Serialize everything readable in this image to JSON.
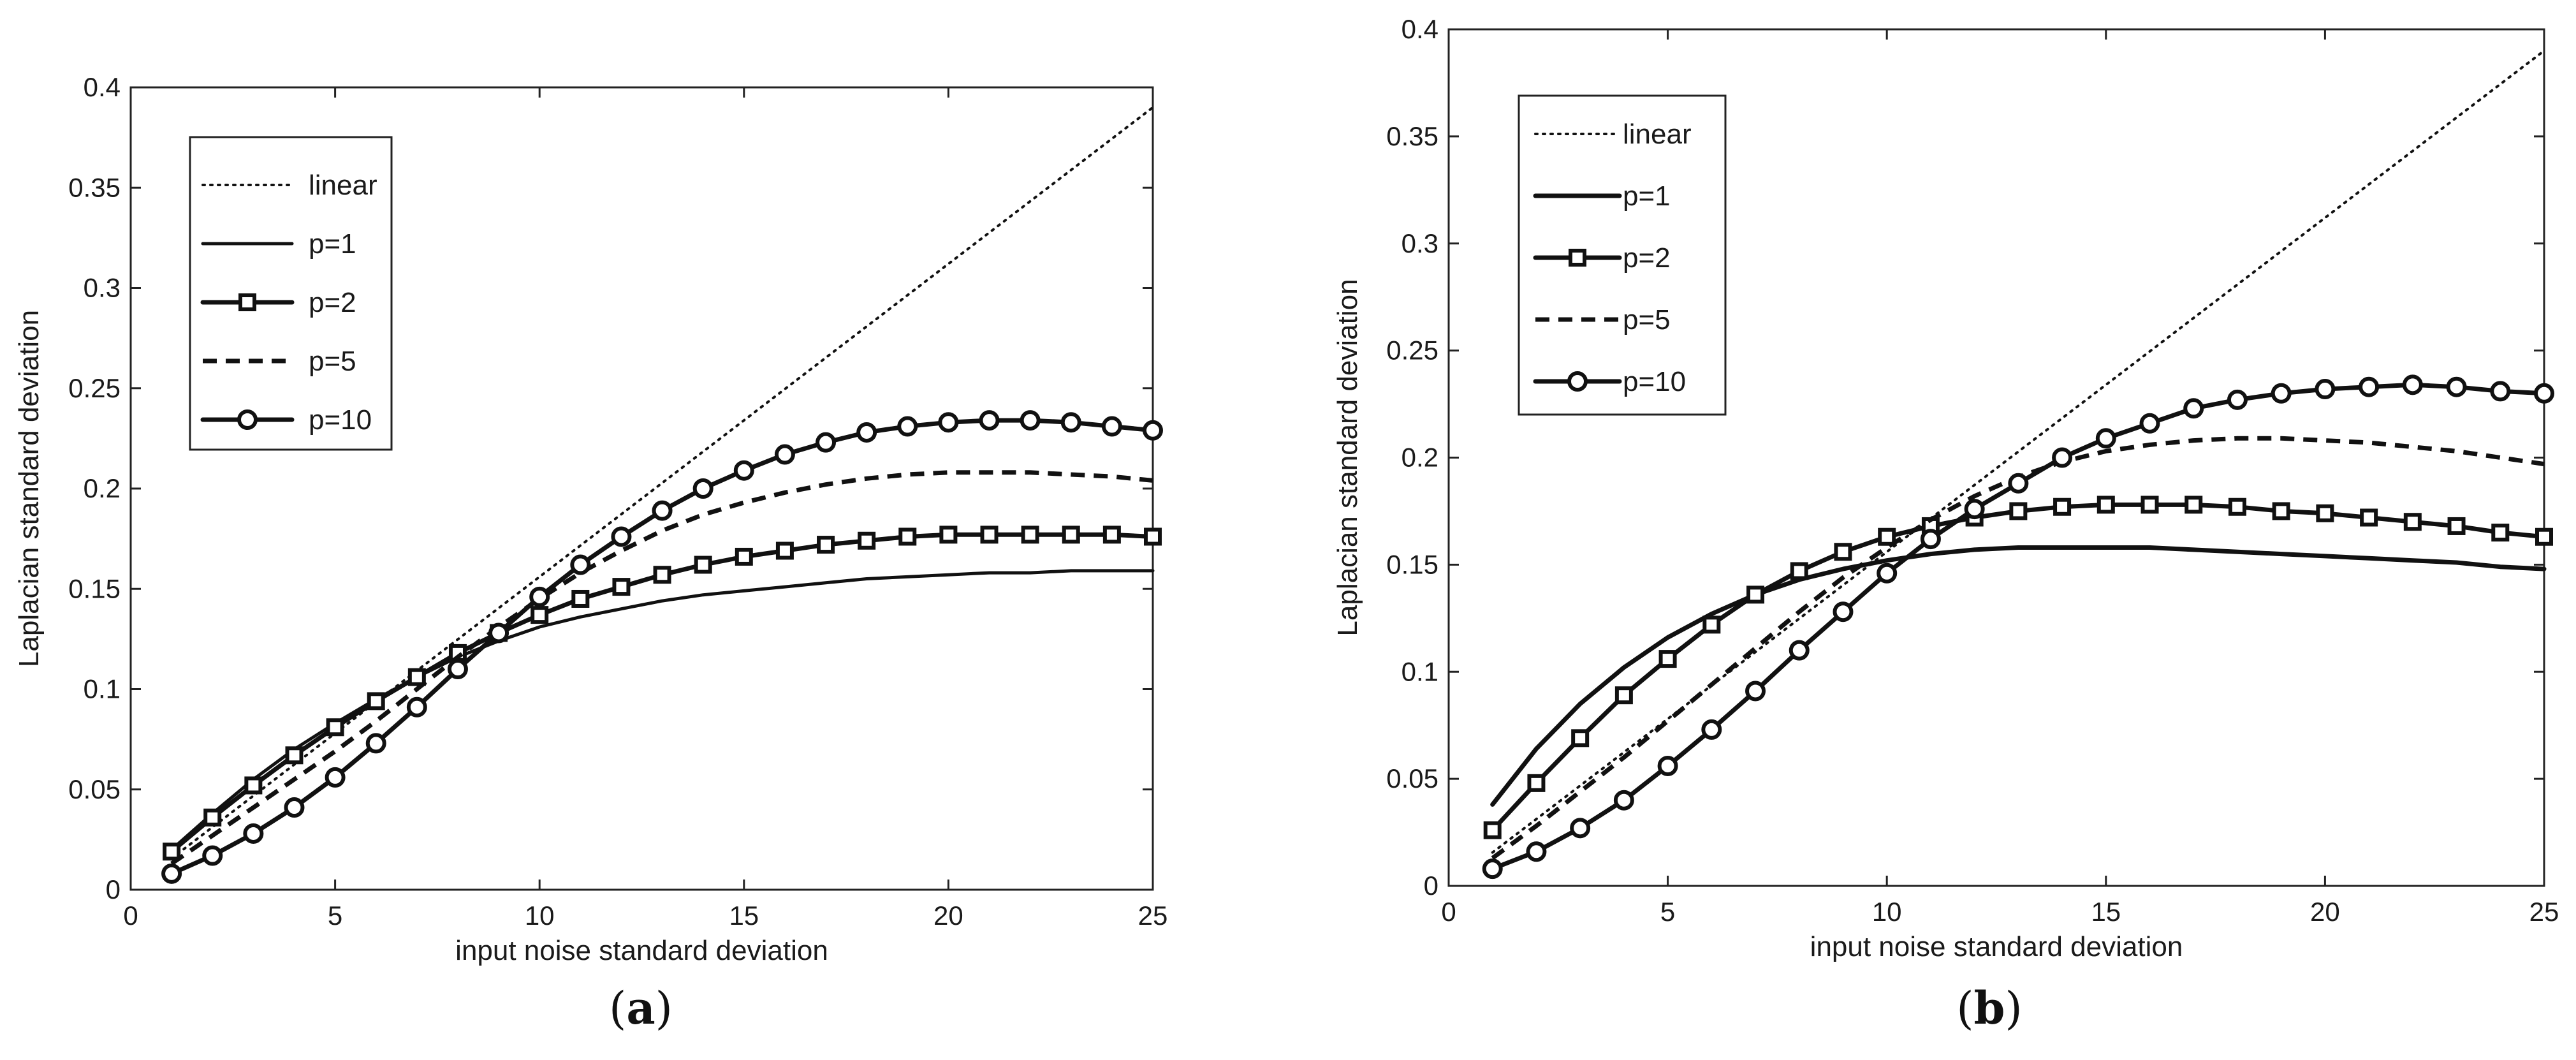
{
  "chart_data": [
    {
      "type": "line",
      "panel_label": "a",
      "xlabel": "input noise standard deviation",
      "ylabel": "Laplacian standard deviation",
      "xlim": [
        0,
        25
      ],
      "ylim": [
        0,
        0.4
      ],
      "xticks": [
        "0",
        "5",
        "10",
        "15",
        "20",
        "25"
      ],
      "yticks": [
        "0",
        "0.05",
        "0.1",
        "0.15",
        "0.2",
        "0.25",
        "0.3",
        "0.35",
        "0.4"
      ],
      "legend_position": "top-left",
      "x": [
        1,
        2,
        3,
        4,
        5,
        6,
        7,
        8,
        9,
        10,
        11,
        12,
        13,
        14,
        15,
        16,
        17,
        18,
        19,
        20,
        21,
        22,
        23,
        24,
        25
      ],
      "series": [
        {
          "name": "linear",
          "style": "dotted",
          "marker": "none",
          "values": [
            0.0156,
            0.0312,
            0.0468,
            0.0624,
            0.078,
            0.0936,
            0.1092,
            0.1248,
            0.1404,
            0.156,
            0.1716,
            0.1872,
            0.2028,
            0.2184,
            0.234,
            0.2496,
            0.2652,
            0.2808,
            0.2964,
            0.312,
            0.3276,
            0.3432,
            0.3588,
            0.3744,
            0.39
          ]
        },
        {
          "name": "p=1",
          "style": "solid-thin",
          "marker": "none",
          "values": [
            0.02,
            0.038,
            0.055,
            0.07,
            0.083,
            0.095,
            0.106,
            0.116,
            0.124,
            0.131,
            0.136,
            0.14,
            0.144,
            0.147,
            0.149,
            0.151,
            0.153,
            0.155,
            0.156,
            0.157,
            0.158,
            0.158,
            0.159,
            0.159,
            0.159
          ]
        },
        {
          "name": "p=2",
          "style": "solid",
          "marker": "square",
          "values": [
            0.019,
            0.036,
            0.052,
            0.067,
            0.081,
            0.094,
            0.106,
            0.118,
            0.128,
            0.137,
            0.145,
            0.151,
            0.157,
            0.162,
            0.166,
            0.169,
            0.172,
            0.174,
            0.176,
            0.177,
            0.177,
            0.177,
            0.177,
            0.177,
            0.176
          ]
        },
        {
          "name": "p=5",
          "style": "dashed",
          "marker": "none",
          "values": [
            0.013,
            0.027,
            0.041,
            0.055,
            0.069,
            0.084,
            0.1,
            0.116,
            0.131,
            0.145,
            0.158,
            0.169,
            0.179,
            0.187,
            0.193,
            0.198,
            0.202,
            0.205,
            0.207,
            0.208,
            0.208,
            0.208,
            0.207,
            0.206,
            0.204
          ]
        },
        {
          "name": "p=10",
          "style": "solid",
          "marker": "circle",
          "values": [
            0.008,
            0.017,
            0.028,
            0.041,
            0.056,
            0.073,
            0.091,
            0.11,
            0.128,
            0.146,
            0.162,
            0.176,
            0.189,
            0.2,
            0.209,
            0.217,
            0.223,
            0.228,
            0.231,
            0.233,
            0.234,
            0.234,
            0.233,
            0.231,
            0.229
          ]
        }
      ]
    },
    {
      "type": "line",
      "panel_label": "b",
      "xlabel": "input noise standard deviation",
      "ylabel": "Laplacian standard deviation",
      "xlim": [
        0,
        25
      ],
      "ylim": [
        0,
        0.4
      ],
      "xticks": [
        "0",
        "5",
        "10",
        "15",
        "20",
        "25"
      ],
      "yticks": [
        "0",
        "0.05",
        "0.1",
        "0.15",
        "0.2",
        "0.25",
        "0.3",
        "0.35",
        "0.4"
      ],
      "legend_position": "top-left",
      "x": [
        1,
        2,
        3,
        4,
        5,
        6,
        7,
        8,
        9,
        10,
        11,
        12,
        13,
        14,
        15,
        16,
        17,
        18,
        19,
        20,
        21,
        22,
        23,
        24,
        25
      ],
      "series": [
        {
          "name": "linear",
          "style": "dotted",
          "marker": "none",
          "values": [
            0.0156,
            0.0312,
            0.0468,
            0.0624,
            0.078,
            0.0936,
            0.1092,
            0.1248,
            0.1404,
            0.156,
            0.1716,
            0.1872,
            0.2028,
            0.2184,
            0.234,
            0.2496,
            0.2652,
            0.2808,
            0.2964,
            0.312,
            0.3276,
            0.3432,
            0.3588,
            0.3744,
            0.39
          ]
        },
        {
          "name": "p=1",
          "style": "solid",
          "marker": "none",
          "values": [
            0.038,
            0.064,
            0.085,
            0.102,
            0.116,
            0.127,
            0.136,
            0.143,
            0.148,
            0.152,
            0.155,
            0.157,
            0.158,
            0.158,
            0.158,
            0.158,
            0.157,
            0.156,
            0.155,
            0.154,
            0.153,
            0.152,
            0.151,
            0.149,
            0.148
          ]
        },
        {
          "name": "p=2",
          "style": "solid",
          "marker": "square",
          "values": [
            0.026,
            0.048,
            0.069,
            0.089,
            0.106,
            0.122,
            0.136,
            0.147,
            0.156,
            0.163,
            0.168,
            0.172,
            0.175,
            0.177,
            0.178,
            0.178,
            0.178,
            0.177,
            0.175,
            0.174,
            0.172,
            0.17,
            0.168,
            0.165,
            0.163
          ]
        },
        {
          "name": "p=5",
          "style": "dashed",
          "marker": "none",
          "values": [
            0.013,
            0.028,
            0.044,
            0.06,
            0.077,
            0.094,
            0.111,
            0.128,
            0.144,
            0.158,
            0.171,
            0.182,
            0.191,
            0.198,
            0.203,
            0.206,
            0.208,
            0.209,
            0.209,
            0.208,
            0.207,
            0.205,
            0.203,
            0.2,
            0.197
          ]
        },
        {
          "name": "p=10",
          "style": "solid",
          "marker": "circle",
          "values": [
            0.008,
            0.016,
            0.027,
            0.04,
            0.056,
            0.073,
            0.091,
            0.11,
            0.128,
            0.146,
            0.162,
            0.176,
            0.188,
            0.2,
            0.209,
            0.216,
            0.223,
            0.227,
            0.23,
            0.232,
            0.233,
            0.234,
            0.233,
            0.231,
            0.23
          ]
        }
      ]
    }
  ]
}
